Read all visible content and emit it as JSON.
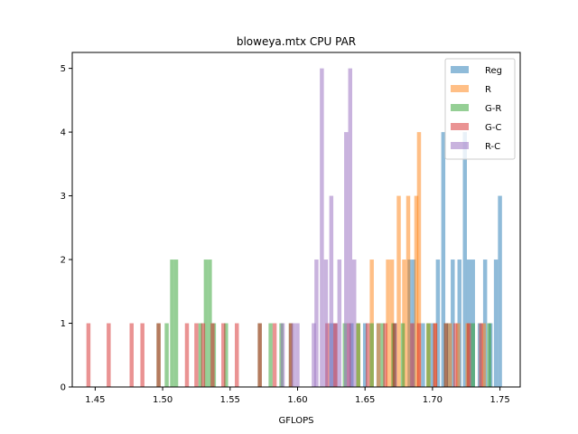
{
  "chart_data": {
    "type": "bar",
    "title": "bloweya.mtx CPU PAR",
    "xlabel": "GFLOPS",
    "ylabel": "",
    "xlim": [
      1.433,
      1.765
    ],
    "ylim": [
      0,
      5.25
    ],
    "bin_width": 0.003,
    "xticks": [
      1.45,
      1.5,
      1.55,
      1.6,
      1.65,
      1.7,
      1.75
    ],
    "xtick_labels": [
      "1.45",
      "1.50",
      "1.55",
      "1.60",
      "1.65",
      "1.70",
      "1.75"
    ],
    "yticks": [
      0,
      1,
      2,
      3,
      4,
      5
    ],
    "ytick_labels": [
      "0",
      "1",
      "2",
      "3",
      "4",
      "5"
    ],
    "grid": false,
    "legend": "top-right",
    "series": [
      {
        "name": "Reg",
        "color": "#1f77b4",
        "opacity": 0.5,
        "bars": [
          {
            "x": 1.625,
            "y": 1
          },
          {
            "x": 1.64,
            "y": 1
          },
          {
            "x": 1.65,
            "y": 1
          },
          {
            "x": 1.66,
            "y": 1
          },
          {
            "x": 1.672,
            "y": 1
          },
          {
            "x": 1.683,
            "y": 2
          },
          {
            "x": 1.686,
            "y": 2
          },
          {
            "x": 1.693,
            "y": 1
          },
          {
            "x": 1.7,
            "y": 1
          },
          {
            "x": 1.704,
            "y": 2
          },
          {
            "x": 1.708,
            "y": 4
          },
          {
            "x": 1.712,
            "y": 1
          },
          {
            "x": 1.715,
            "y": 2
          },
          {
            "x": 1.72,
            "y": 2
          },
          {
            "x": 1.724,
            "y": 4
          },
          {
            "x": 1.727,
            "y": 2
          },
          {
            "x": 1.73,
            "y": 2
          },
          {
            "x": 1.735,
            "y": 1
          },
          {
            "x": 1.739,
            "y": 2
          },
          {
            "x": 1.743,
            "y": 1
          },
          {
            "x": 1.747,
            "y": 2
          },
          {
            "x": 1.75,
            "y": 3
          }
        ]
      },
      {
        "name": "R",
        "color": "#ff7f0e",
        "opacity": 0.5,
        "bars": [
          {
            "x": 1.628,
            "y": 1
          },
          {
            "x": 1.645,
            "y": 1
          },
          {
            "x": 1.655,
            "y": 2
          },
          {
            "x": 1.66,
            "y": 1
          },
          {
            "x": 1.667,
            "y": 2
          },
          {
            "x": 1.67,
            "y": 2
          },
          {
            "x": 1.675,
            "y": 3
          },
          {
            "x": 1.679,
            "y": 2
          },
          {
            "x": 1.682,
            "y": 3
          },
          {
            "x": 1.688,
            "y": 3
          },
          {
            "x": 1.69,
            "y": 4
          },
          {
            "x": 1.697,
            "y": 1
          },
          {
            "x": 1.702,
            "y": 1
          },
          {
            "x": 1.713,
            "y": 1
          },
          {
            "x": 1.719,
            "y": 1
          },
          {
            "x": 1.726,
            "y": 1
          },
          {
            "x": 1.738,
            "y": 1
          }
        ]
      },
      {
        "name": "G-R",
        "color": "#2ca02c",
        "opacity": 0.5,
        "bars": [
          {
            "x": 1.497,
            "y": 1
          },
          {
            "x": 1.503,
            "y": 1
          },
          {
            "x": 1.507,
            "y": 2
          },
          {
            "x": 1.51,
            "y": 2
          },
          {
            "x": 1.528,
            "y": 1
          },
          {
            "x": 1.532,
            "y": 2
          },
          {
            "x": 1.535,
            "y": 2
          },
          {
            "x": 1.538,
            "y": 1
          },
          {
            "x": 1.547,
            "y": 1
          },
          {
            "x": 1.572,
            "y": 1
          },
          {
            "x": 1.58,
            "y": 1
          },
          {
            "x": 1.588,
            "y": 1
          },
          {
            "x": 1.595,
            "y": 1
          },
          {
            "x": 1.635,
            "y": 1
          },
          {
            "x": 1.645,
            "y": 1
          },
          {
            "x": 1.655,
            "y": 1
          },
          {
            "x": 1.663,
            "y": 1
          },
          {
            "x": 1.671,
            "y": 1
          },
          {
            "x": 1.678,
            "y": 1
          },
          {
            "x": 1.697,
            "y": 1
          },
          {
            "x": 1.71,
            "y": 1
          },
          {
            "x": 1.73,
            "y": 1
          },
          {
            "x": 1.742,
            "y": 1
          }
        ]
      },
      {
        "name": "G-C",
        "color": "#d62728",
        "opacity": 0.5,
        "bars": [
          {
            "x": 1.445,
            "y": 1
          },
          {
            "x": 1.46,
            "y": 1
          },
          {
            "x": 1.477,
            "y": 1
          },
          {
            "x": 1.485,
            "y": 1
          },
          {
            "x": 1.497,
            "y": 1
          },
          {
            "x": 1.518,
            "y": 1
          },
          {
            "x": 1.525,
            "y": 1
          },
          {
            "x": 1.53,
            "y": 1
          },
          {
            "x": 1.537,
            "y": 1
          },
          {
            "x": 1.545,
            "y": 1
          },
          {
            "x": 1.555,
            "y": 1
          },
          {
            "x": 1.572,
            "y": 1
          },
          {
            "x": 1.583,
            "y": 1
          },
          {
            "x": 1.595,
            "y": 1
          },
          {
            "x": 1.622,
            "y": 1
          },
          {
            "x": 1.628,
            "y": 1
          },
          {
            "x": 1.638,
            "y": 1
          },
          {
            "x": 1.652,
            "y": 1
          },
          {
            "x": 1.665,
            "y": 1
          },
          {
            "x": 1.672,
            "y": 1
          },
          {
            "x": 1.685,
            "y": 1
          },
          {
            "x": 1.69,
            "y": 1
          },
          {
            "x": 1.702,
            "y": 1
          },
          {
            "x": 1.71,
            "y": 1
          },
          {
            "x": 1.717,
            "y": 1
          },
          {
            "x": 1.727,
            "y": 1
          },
          {
            "x": 1.736,
            "y": 1
          }
        ]
      },
      {
        "name": "R-C",
        "color": "#9467bd",
        "opacity": 0.5,
        "bars": [
          {
            "x": 1.589,
            "y": 1
          },
          {
            "x": 1.597,
            "y": 1
          },
          {
            "x": 1.6,
            "y": 1
          },
          {
            "x": 1.612,
            "y": 1
          },
          {
            "x": 1.614,
            "y": 2
          },
          {
            "x": 1.618,
            "y": 5
          },
          {
            "x": 1.621,
            "y": 2
          },
          {
            "x": 1.625,
            "y": 3
          },
          {
            "x": 1.628,
            "y": 1
          },
          {
            "x": 1.631,
            "y": 2
          },
          {
            "x": 1.636,
            "y": 4
          },
          {
            "x": 1.639,
            "y": 5
          },
          {
            "x": 1.642,
            "y": 2
          }
        ]
      }
    ]
  }
}
